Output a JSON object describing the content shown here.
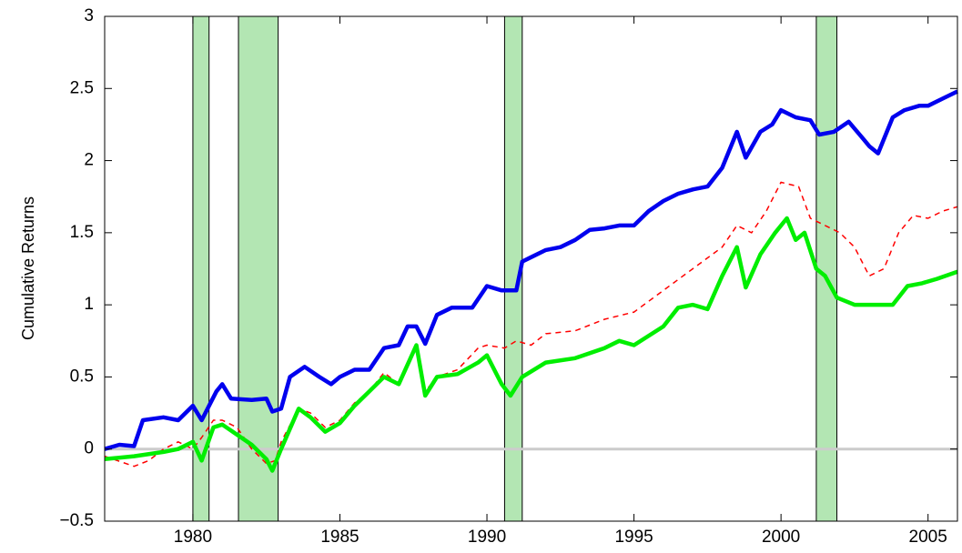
{
  "chart_data": {
    "type": "line",
    "y_label": "Cumulative Returns",
    "xlim": [
      1977,
      2006
    ],
    "xticks": [
      1980,
      1985,
      1990,
      1995,
      2000,
      2005
    ],
    "ylim": [
      -0.5,
      3
    ],
    "yticks": [
      {
        "value": -0.5,
        "label": "−0.5"
      },
      0,
      0.5,
      1,
      1.5,
      2,
      2.5,
      3
    ],
    "reference_line": {
      "value": 0,
      "color": "#cccccc"
    },
    "shaded_regions": {
      "color": "#b3e6b3",
      "ranges": [
        [
          1980,
          1980.55
        ],
        [
          1981.55,
          1982.9
        ],
        [
          1990.6,
          1991.2
        ],
        [
          2001.2,
          2001.9
        ]
      ]
    },
    "series": [
      {
        "color": "#0000ee",
        "style": "solid",
        "x": [
          1977,
          1977.5,
          1978,
          1978.3,
          1979,
          1979.5,
          1980,
          1980.3,
          1980.8,
          1981,
          1981.3,
          1982,
          1982.5,
          1982.7,
          1983,
          1983.3,
          1983.8,
          1984.3,
          1984.7,
          1985,
          1985.5,
          1986,
          1986.5,
          1987,
          1987.3,
          1987.6,
          1987.9,
          1988.3,
          1988.8,
          1989.5,
          1990,
          1990.5,
          1991,
          1991.2,
          1991.5,
          1992,
          1992.5,
          1993,
          1993.5,
          1994,
          1994.5,
          1995,
          1995.5,
          1996,
          1996.5,
          1997,
          1997.5,
          1998,
          1998.5,
          1998.8,
          1999.3,
          1999.7,
          2000,
          2000.5,
          2001,
          2001.3,
          2001.8,
          2002.3,
          2002.8,
          2003,
          2003.3,
          2003.8,
          2004.2,
          2004.7,
          2005,
          2005.5,
          2006
        ],
        "values": [
          0.0,
          0.03,
          0.02,
          0.2,
          0.22,
          0.2,
          0.3,
          0.2,
          0.4,
          0.45,
          0.35,
          0.34,
          0.35,
          0.26,
          0.28,
          0.5,
          0.57,
          0.5,
          0.45,
          0.5,
          0.55,
          0.55,
          0.7,
          0.72,
          0.85,
          0.85,
          0.73,
          0.93,
          0.98,
          0.98,
          1.13,
          1.1,
          1.1,
          1.3,
          1.33,
          1.38,
          1.4,
          1.45,
          1.52,
          1.53,
          1.55,
          1.55,
          1.65,
          1.72,
          1.77,
          1.8,
          1.82,
          1.95,
          2.2,
          2.02,
          2.2,
          2.25,
          2.35,
          2.3,
          2.28,
          2.18,
          2.2,
          2.27,
          2.15,
          2.1,
          2.05,
          2.3,
          2.35,
          2.38,
          2.38,
          2.43,
          2.48
        ]
      },
      {
        "color": "#ff0000",
        "style": "dashed",
        "x": [
          1977,
          1978,
          1978.5,
          1979,
          1979.5,
          1980,
          1980.3,
          1980.7,
          1981,
          1981.5,
          1982,
          1982.5,
          1982.8,
          1983,
          1983.6,
          1984,
          1984.5,
          1985,
          1985.5,
          1986,
          1986.5,
          1987,
          1987.6,
          1987.9,
          1988.3,
          1989,
          1989.7,
          1990,
          1990.6,
          1991,
          1991.5,
          1992,
          1993,
          1994,
          1995,
          1996,
          1997,
          1998,
          1998.5,
          1999,
          1999.5,
          2000,
          2000.6,
          2001,
          2001.5,
          2002,
          2002.5,
          2003,
          2003.5,
          2004,
          2004.5,
          2005,
          2005.5,
          2006
        ],
        "values": [
          -0.05,
          -0.12,
          -0.08,
          0.0,
          0.05,
          0.0,
          0.08,
          0.2,
          0.2,
          0.15,
          0.0,
          -0.1,
          -0.08,
          0.05,
          0.28,
          0.25,
          0.15,
          0.2,
          0.32,
          0.4,
          0.53,
          0.45,
          0.72,
          0.4,
          0.5,
          0.55,
          0.7,
          0.72,
          0.7,
          0.75,
          0.72,
          0.8,
          0.82,
          0.9,
          0.95,
          1.1,
          1.25,
          1.4,
          1.55,
          1.5,
          1.65,
          1.85,
          1.82,
          1.6,
          1.55,
          1.5,
          1.4,
          1.2,
          1.25,
          1.5,
          1.62,
          1.6,
          1.65,
          1.68
        ]
      },
      {
        "color": "#00ee00",
        "style": "solid",
        "x": [
          1977,
          1978,
          1979,
          1979.5,
          1980,
          1980.3,
          1980.7,
          1981,
          1981.5,
          1982,
          1982.5,
          1982.7,
          1983,
          1983.6,
          1984,
          1984.5,
          1985,
          1985.5,
          1986,
          1986.5,
          1987,
          1987.6,
          1987.9,
          1988.3,
          1989,
          1989.7,
          1990,
          1990.5,
          1990.8,
          1991.2,
          1992,
          1993,
          1994,
          1994.5,
          1995,
          1996,
          1996.5,
          1997,
          1997.5,
          1998,
          1998.5,
          1998.8,
          1999.3,
          1999.8,
          2000.2,
          2000.5,
          2000.8,
          2001.2,
          2001.5,
          2001.9,
          2002.5,
          2003,
          2003.8,
          2004.3,
          2004.8,
          2005.3,
          2006
        ],
        "values": [
          -0.07,
          -0.05,
          -0.02,
          0.0,
          0.05,
          -0.08,
          0.15,
          0.17,
          0.1,
          0.03,
          -0.07,
          -0.15,
          0.0,
          0.28,
          0.22,
          0.12,
          0.18,
          0.3,
          0.4,
          0.5,
          0.45,
          0.72,
          0.37,
          0.5,
          0.52,
          0.6,
          0.65,
          0.45,
          0.37,
          0.5,
          0.6,
          0.63,
          0.7,
          0.75,
          0.72,
          0.85,
          0.98,
          1.0,
          0.97,
          1.2,
          1.4,
          1.12,
          1.35,
          1.5,
          1.6,
          1.45,
          1.5,
          1.25,
          1.2,
          1.05,
          1.0,
          1.0,
          1.0,
          1.13,
          1.15,
          1.18,
          1.23
        ]
      }
    ]
  }
}
